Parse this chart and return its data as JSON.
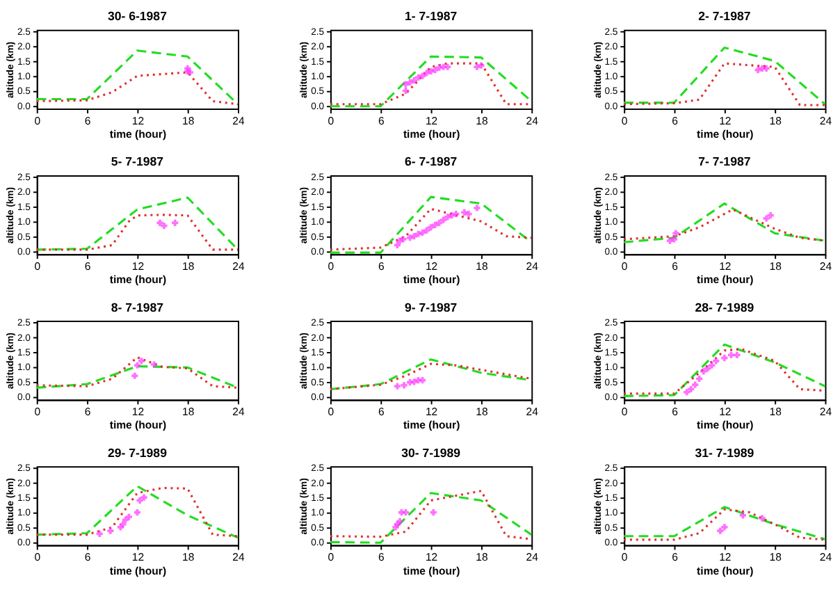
{
  "chart_data": [
    {
      "type": "line",
      "title": "30- 6-1987",
      "xlabel": "time (hour)",
      "ylabel": "altitude (km)",
      "xlim": [
        0,
        24
      ],
      "xticks": [
        0,
        6,
        12,
        18,
        24
      ],
      "ylim": [
        -0.1,
        2.55
      ],
      "yticks": [
        {
          "value": 0,
          "label": "0.0"
        },
        {
          "value": 0.5,
          "label": "0.5"
        },
        {
          "value": 1,
          "label": "1.0"
        },
        {
          "value": 1.5,
          "label": "1.5"
        },
        {
          "value": 2,
          "label": "2.0"
        },
        {
          "value": 2.5,
          "label": "2.5"
        }
      ],
      "series": [
        {
          "line_style": "dashed",
          "color": "#22dd22",
          "x": [
            0,
            6,
            12,
            18,
            24
          ],
          "values": [
            0.22,
            0.22,
            1.85,
            1.65,
            0.05
          ]
        },
        {
          "line_style": "dotted",
          "color": "#e03030",
          "x": [
            0,
            6,
            9,
            12,
            18,
            21,
            24
          ],
          "values": [
            0.15,
            0.18,
            0.45,
            1.0,
            1.12,
            0.15,
            0.05
          ]
        },
        {
          "type": "scatter",
          "marker": "cross",
          "color": "#ff33ff",
          "x": [
            18,
            18,
            18.3
          ],
          "values": [
            1.25,
            1.15,
            1.12
          ]
        }
      ]
    },
    {
      "type": "line",
      "title": "1- 7-1987",
      "xlabel": "time (hour)",
      "ylabel": "altitude (km)",
      "xlim": [
        0,
        24
      ],
      "xticks": [
        0,
        6,
        12,
        18,
        24
      ],
      "ylim": [
        -0.1,
        2.55
      ],
      "yticks": [
        {
          "value": 0,
          "label": "0.0"
        },
        {
          "value": 0.5,
          "label": "0.5"
        },
        {
          "value": 1,
          "label": "1.0"
        },
        {
          "value": 1.5,
          "label": "1.5"
        },
        {
          "value": 2,
          "label": "2.0"
        },
        {
          "value": 2.5,
          "label": "2.5"
        }
      ],
      "series": [
        {
          "line_style": "dashed",
          "color": "#22dd22",
          "x": [
            0,
            6,
            12,
            18,
            24
          ],
          "values": [
            -0.02,
            -0.02,
            1.65,
            1.62,
            0.15
          ]
        },
        {
          "line_style": "dotted",
          "color": "#e03030",
          "x": [
            0,
            6,
            9,
            12,
            14,
            18,
            21,
            24
          ],
          "values": [
            0.05,
            0.05,
            0.4,
            1.3,
            1.42,
            1.42,
            0.05,
            0.05
          ]
        },
        {
          "type": "scatter",
          "marker": "cross",
          "color": "#ff33ff",
          "x": [
            9,
            9,
            9.5,
            10,
            10.5,
            11,
            11.5,
            12,
            12.5,
            13,
            13.5,
            14,
            17.5,
            18
          ],
          "values": [
            0.5,
            0.72,
            0.78,
            0.85,
            0.95,
            1.0,
            1.1,
            1.15,
            1.2,
            1.28,
            1.3,
            1.3,
            1.3,
            1.35
          ]
        }
      ]
    },
    {
      "type": "line",
      "title": "2- 7-1987",
      "xlabel": "time (hour)",
      "ylabel": "altitude (km)",
      "xlim": [
        0,
        24
      ],
      "xticks": [
        0,
        6,
        12,
        18,
        24
      ],
      "ylim": [
        -0.1,
        2.55
      ],
      "yticks": [
        {
          "value": 0,
          "label": "0.0"
        },
        {
          "value": 0.5,
          "label": "0.5"
        },
        {
          "value": 1,
          "label": "1.0"
        },
        {
          "value": 1.5,
          "label": "1.5"
        },
        {
          "value": 2,
          "label": "2.0"
        },
        {
          "value": 2.5,
          "label": "2.5"
        }
      ],
      "series": [
        {
          "line_style": "dashed",
          "color": "#22dd22",
          "x": [
            0,
            6,
            12,
            18,
            24
          ],
          "values": [
            0.1,
            0.1,
            1.95,
            1.5,
            0.05
          ]
        },
        {
          "line_style": "dotted",
          "color": "#e03030",
          "x": [
            0,
            6,
            9,
            12,
            18,
            21,
            24
          ],
          "values": [
            0.05,
            0.08,
            0.2,
            1.42,
            1.3,
            0.02,
            0.02
          ]
        },
        {
          "type": "scatter",
          "marker": "cross",
          "color": "#ff33ff",
          "x": [
            16,
            16.5,
            17
          ],
          "values": [
            1.2,
            1.25,
            1.25
          ]
        }
      ]
    },
    {
      "type": "line",
      "title": "5- 7-1987",
      "xlabel": "time (hour)",
      "ylabel": "altitude (km)",
      "xlim": [
        0,
        24
      ],
      "xticks": [
        0,
        6,
        12,
        18,
        24
      ],
      "ylim": [
        -0.1,
        2.55
      ],
      "yticks": [
        {
          "value": 0,
          "label": "0.0"
        },
        {
          "value": 0.5,
          "label": "0.5"
        },
        {
          "value": 1,
          "label": "1.0"
        },
        {
          "value": 1.5,
          "label": "1.5"
        },
        {
          "value": 2,
          "label": "2.0"
        },
        {
          "value": 2.5,
          "label": "2.5"
        }
      ],
      "series": [
        {
          "line_style": "dashed",
          "color": "#22dd22",
          "x": [
            0,
            6,
            12,
            18,
            24
          ],
          "values": [
            0.05,
            0.08,
            1.4,
            1.8,
            0.05
          ]
        },
        {
          "line_style": "dotted",
          "color": "#e03030",
          "x": [
            0,
            6,
            9,
            11,
            12,
            15,
            18,
            21,
            24
          ],
          "values": [
            0.05,
            0.05,
            0.2,
            1.0,
            1.2,
            1.22,
            1.2,
            0.05,
            0.05
          ]
        },
        {
          "type": "scatter",
          "marker": "cross",
          "color": "#ff33ff",
          "x": [
            14.7,
            15.2,
            16.5
          ],
          "values": [
            0.95,
            0.85,
            0.95
          ]
        }
      ]
    },
    {
      "type": "line",
      "title": "6- 7-1987",
      "xlabel": "time (hour)",
      "ylabel": "altitude (km)",
      "xlim": [
        0,
        24
      ],
      "xticks": [
        0,
        6,
        12,
        18,
        24
      ],
      "ylim": [
        -0.1,
        2.55
      ],
      "yticks": [
        {
          "value": 0,
          "label": "0.0"
        },
        {
          "value": 0.5,
          "label": "0.5"
        },
        {
          "value": 1,
          "label": "1.0"
        },
        {
          "value": 1.5,
          "label": "1.5"
        },
        {
          "value": 2,
          "label": "2.0"
        },
        {
          "value": 2.5,
          "label": "2.5"
        }
      ],
      "series": [
        {
          "line_style": "dashed",
          "color": "#22dd22",
          "x": [
            0,
            6,
            12,
            18,
            24
          ],
          "values": [
            -0.05,
            -0.05,
            1.82,
            1.6,
            0.3
          ]
        },
        {
          "line_style": "dotted",
          "color": "#e03030",
          "x": [
            0,
            6,
            9,
            12,
            18,
            21,
            24
          ],
          "values": [
            0.05,
            0.12,
            0.5,
            1.42,
            1.0,
            0.5,
            0.45
          ]
        },
        {
          "type": "scatter",
          "marker": "cross",
          "color": "#ff33ff",
          "x": [
            8,
            8.3,
            8.7,
            9.5,
            10,
            10.5,
            11,
            11.5,
            12,
            12.5,
            13,
            13.5,
            14,
            14.5,
            15,
            16,
            16.5,
            17.5
          ],
          "values": [
            0.2,
            0.35,
            0.4,
            0.45,
            0.5,
            0.58,
            0.62,
            0.7,
            0.8,
            0.88,
            0.95,
            1.05,
            1.15,
            1.2,
            1.25,
            1.3,
            1.25,
            1.45
          ]
        }
      ]
    },
    {
      "type": "line",
      "title": "7- 7-1987",
      "xlabel": "time (hour)",
      "ylabel": "altitude (km)",
      "xlim": [
        0,
        24
      ],
      "xticks": [
        0,
        6,
        12,
        18,
        24
      ],
      "ylim": [
        -0.1,
        2.55
      ],
      "yticks": [
        {
          "value": 0,
          "label": "0.0"
        },
        {
          "value": 0.5,
          "label": "0.5"
        },
        {
          "value": 1,
          "label": "1.0"
        },
        {
          "value": 1.5,
          "label": "1.5"
        },
        {
          "value": 2,
          "label": "2.0"
        },
        {
          "value": 2.5,
          "label": "2.5"
        }
      ],
      "series": [
        {
          "line_style": "dashed",
          "color": "#22dd22",
          "x": [
            0,
            6,
            12,
            18,
            24
          ],
          "values": [
            0.3,
            0.45,
            1.6,
            0.6,
            0.35
          ]
        },
        {
          "line_style": "dotted",
          "color": "#e03030",
          "x": [
            0,
            6,
            9,
            13,
            18,
            21,
            24
          ],
          "values": [
            0.4,
            0.5,
            0.8,
            1.4,
            0.75,
            0.45,
            0.35
          ]
        },
        {
          "type": "scatter",
          "marker": "cross",
          "color": "#ff33ff",
          "x": [
            5.5,
            6,
            6.2,
            17,
            17.5
          ],
          "values": [
            0.35,
            0.4,
            0.6,
            1.1,
            1.2
          ]
        }
      ]
    },
    {
      "type": "line",
      "title": "8- 7-1987",
      "xlabel": "time (hour)",
      "ylabel": "altitude (km)",
      "xlim": [
        0,
        24
      ],
      "xticks": [
        0,
        6,
        12,
        18,
        24
      ],
      "ylim": [
        -0.1,
        2.55
      ],
      "yticks": [
        {
          "value": 0,
          "label": "0.0"
        },
        {
          "value": 0.5,
          "label": "0.5"
        },
        {
          "value": 1,
          "label": "1.0"
        },
        {
          "value": 1.5,
          "label": "1.5"
        },
        {
          "value": 2,
          "label": "2.0"
        },
        {
          "value": 2.5,
          "label": "2.5"
        }
      ],
      "series": [
        {
          "line_style": "dashed",
          "color": "#22dd22",
          "x": [
            0,
            6,
            12,
            18,
            24
          ],
          "values": [
            0.3,
            0.42,
            1.02,
            0.98,
            0.3
          ]
        },
        {
          "line_style": "dotted",
          "color": "#e03030",
          "x": [
            0,
            6,
            9,
            12,
            15,
            18,
            21,
            24
          ],
          "values": [
            0.38,
            0.35,
            0.6,
            1.32,
            1.0,
            0.95,
            0.35,
            0.3
          ]
        },
        {
          "type": "scatter",
          "marker": "cross",
          "color": "#ff33ff",
          "x": [
            11.7,
            12,
            12.5,
            14
          ],
          "values": [
            0.7,
            1.05,
            1.2,
            1.08
          ]
        }
      ]
    },
    {
      "type": "line",
      "title": "9- 7-1987",
      "xlabel": "time (hour)",
      "ylabel": "altitude (km)",
      "xlim": [
        0,
        24
      ],
      "xticks": [
        0,
        6,
        12,
        18,
        24
      ],
      "ylim": [
        -0.1,
        2.55
      ],
      "yticks": [
        {
          "value": 0,
          "label": "0.0"
        },
        {
          "value": 0.5,
          "label": "0.5"
        },
        {
          "value": 1,
          "label": "1.0"
        },
        {
          "value": 1.5,
          "label": "1.5"
        },
        {
          "value": 2,
          "label": "2.0"
        },
        {
          "value": 2.5,
          "label": "2.5"
        }
      ],
      "series": [
        {
          "line_style": "dashed",
          "color": "#22dd22",
          "x": [
            0,
            6,
            12,
            18,
            24
          ],
          "values": [
            0.25,
            0.42,
            1.25,
            0.8,
            0.55
          ]
        },
        {
          "line_style": "dotted",
          "color": "#e03030",
          "x": [
            0,
            6,
            9,
            12,
            15,
            18,
            24
          ],
          "values": [
            0.25,
            0.4,
            0.7,
            1.1,
            1.05,
            0.9,
            0.6
          ]
        },
        {
          "type": "scatter",
          "marker": "cross",
          "color": "#ff33ff",
          "x": [
            8,
            8.8,
            9.5,
            10,
            10.5,
            11
          ],
          "values": [
            0.35,
            0.38,
            0.48,
            0.5,
            0.55,
            0.55
          ]
        }
      ]
    },
    {
      "type": "line",
      "title": "28- 7-1989",
      "xlabel": "time (hour)",
      "ylabel": "altitude (km)",
      "xlim": [
        0,
        24
      ],
      "xticks": [
        0,
        6,
        12,
        18,
        24
      ],
      "ylim": [
        -0.1,
        2.55
      ],
      "yticks": [
        {
          "value": 0,
          "label": "0.0"
        },
        {
          "value": 0.5,
          "label": "0.5"
        },
        {
          "value": 1,
          "label": "1.0"
        },
        {
          "value": 1.5,
          "label": "1.5"
        },
        {
          "value": 2,
          "label": "2.0"
        },
        {
          "value": 2.5,
          "label": "2.5"
        }
      ],
      "series": [
        {
          "line_style": "dashed",
          "color": "#22dd22",
          "x": [
            0,
            6,
            12,
            18,
            24
          ],
          "values": [
            0.02,
            0.05,
            1.75,
            1.15,
            0.35
          ]
        },
        {
          "line_style": "dotted",
          "color": "#e03030",
          "x": [
            0,
            6,
            9,
            12,
            14,
            18,
            21,
            24
          ],
          "values": [
            0.1,
            0.1,
            0.8,
            1.55,
            1.6,
            1.2,
            0.25,
            0.2
          ]
        },
        {
          "type": "scatter",
          "marker": "cross",
          "color": "#ff33ff",
          "x": [
            7.5,
            8,
            8.5,
            9,
            9.5,
            10,
            10.5,
            11,
            12,
            12.8,
            13.5
          ],
          "values": [
            0.15,
            0.25,
            0.4,
            0.6,
            0.85,
            0.95,
            1.05,
            1.2,
            1.3,
            1.4,
            1.4
          ]
        }
      ]
    },
    {
      "type": "line",
      "title": "29- 7-1989",
      "xlabel": "time (hour)",
      "ylabel": "altitude (km)",
      "xlim": [
        0,
        24
      ],
      "xticks": [
        0,
        6,
        12,
        18,
        24
      ],
      "ylim": [
        -0.1,
        2.55
      ],
      "yticks": [
        {
          "value": 0,
          "label": "0.0"
        },
        {
          "value": 0.5,
          "label": "0.5"
        },
        {
          "value": 1,
          "label": "1.0"
        },
        {
          "value": 1.5,
          "label": "1.5"
        },
        {
          "value": 2,
          "label": "2.0"
        },
        {
          "value": 2.5,
          "label": "2.5"
        }
      ],
      "series": [
        {
          "line_style": "dashed",
          "color": "#22dd22",
          "x": [
            0,
            6,
            12,
            18,
            24
          ],
          "values": [
            0.25,
            0.3,
            1.88,
            0.9,
            0.15
          ]
        },
        {
          "line_style": "dotted",
          "color": "#e03030",
          "x": [
            0,
            6,
            9,
            12,
            15,
            18,
            21,
            24
          ],
          "values": [
            0.25,
            0.25,
            0.5,
            1.65,
            1.82,
            1.8,
            0.25,
            0.2
          ]
        },
        {
          "type": "scatter",
          "marker": "cross",
          "color": "#ff33ff",
          "x": [
            7.5,
            8.8,
            10,
            10.3,
            10.6,
            11,
            12,
            12.3,
            12.8
          ],
          "values": [
            0.28,
            0.38,
            0.5,
            0.6,
            0.75,
            0.85,
            1.0,
            1.4,
            1.5
          ]
        }
      ]
    },
    {
      "type": "line",
      "title": "30- 7-1989",
      "xlabel": "time (hour)",
      "ylabel": "altitude (km)",
      "xlim": [
        0,
        24
      ],
      "xticks": [
        0,
        6,
        12,
        18,
        24
      ],
      "ylim": [
        -0.1,
        2.55
      ],
      "yticks": [
        {
          "value": 0,
          "label": "0.0"
        },
        {
          "value": 0.5,
          "label": "0.5"
        },
        {
          "value": 1,
          "label": "1.0"
        },
        {
          "value": 1.5,
          "label": "1.5"
        },
        {
          "value": 2,
          "label": "2.0"
        },
        {
          "value": 2.5,
          "label": "2.5"
        }
      ],
      "series": [
        {
          "line_style": "dashed",
          "color": "#22dd22",
          "x": [
            0,
            6,
            12,
            18,
            24
          ],
          "values": [
            0.0,
            -0.02,
            1.65,
            1.4,
            0.25
          ]
        },
        {
          "line_style": "dotted",
          "color": "#e03030",
          "x": [
            0,
            6,
            9,
            12,
            18,
            21,
            24
          ],
          "values": [
            0.2,
            0.18,
            0.35,
            1.4,
            1.72,
            0.2,
            0.1
          ]
        },
        {
          "type": "scatter",
          "marker": "cross",
          "color": "#ff33ff",
          "x": [
            7.8,
            8,
            8.3,
            8.5,
            9,
            12.3
          ],
          "values": [
            0.5,
            0.6,
            0.7,
            1.0,
            1.0,
            1.0
          ]
        }
      ]
    },
    {
      "type": "line",
      "title": "31- 7-1989",
      "xlabel": "time (hour)",
      "ylabel": "altitude (km)",
      "xlim": [
        0,
        24
      ],
      "xticks": [
        0,
        6,
        12,
        18,
        24
      ],
      "ylim": [
        -0.1,
        2.55
      ],
      "yticks": [
        {
          "value": 0,
          "label": "0.0"
        },
        {
          "value": 0.5,
          "label": "0.5"
        },
        {
          "value": 1,
          "label": "1.0"
        },
        {
          "value": 1.5,
          "label": "1.5"
        },
        {
          "value": 2,
          "label": "2.0"
        },
        {
          "value": 2.5,
          "label": "2.5"
        }
      ],
      "series": [
        {
          "line_style": "dashed",
          "color": "#22dd22",
          "x": [
            0,
            6,
            12,
            18,
            24
          ],
          "values": [
            0.2,
            0.2,
            1.18,
            0.6,
            0.1
          ]
        },
        {
          "line_style": "dotted",
          "color": "#e03030",
          "x": [
            0,
            6,
            9,
            12,
            15,
            18,
            21,
            24
          ],
          "values": [
            0.08,
            0.08,
            0.3,
            1.1,
            1.0,
            0.6,
            0.15,
            0.08
          ]
        },
        {
          "type": "scatter",
          "marker": "cross",
          "color": "#ff33ff",
          "x": [
            11.5,
            12,
            14.2,
            16.5
          ],
          "values": [
            0.38,
            0.5,
            0.9,
            0.8
          ]
        }
      ]
    }
  ]
}
